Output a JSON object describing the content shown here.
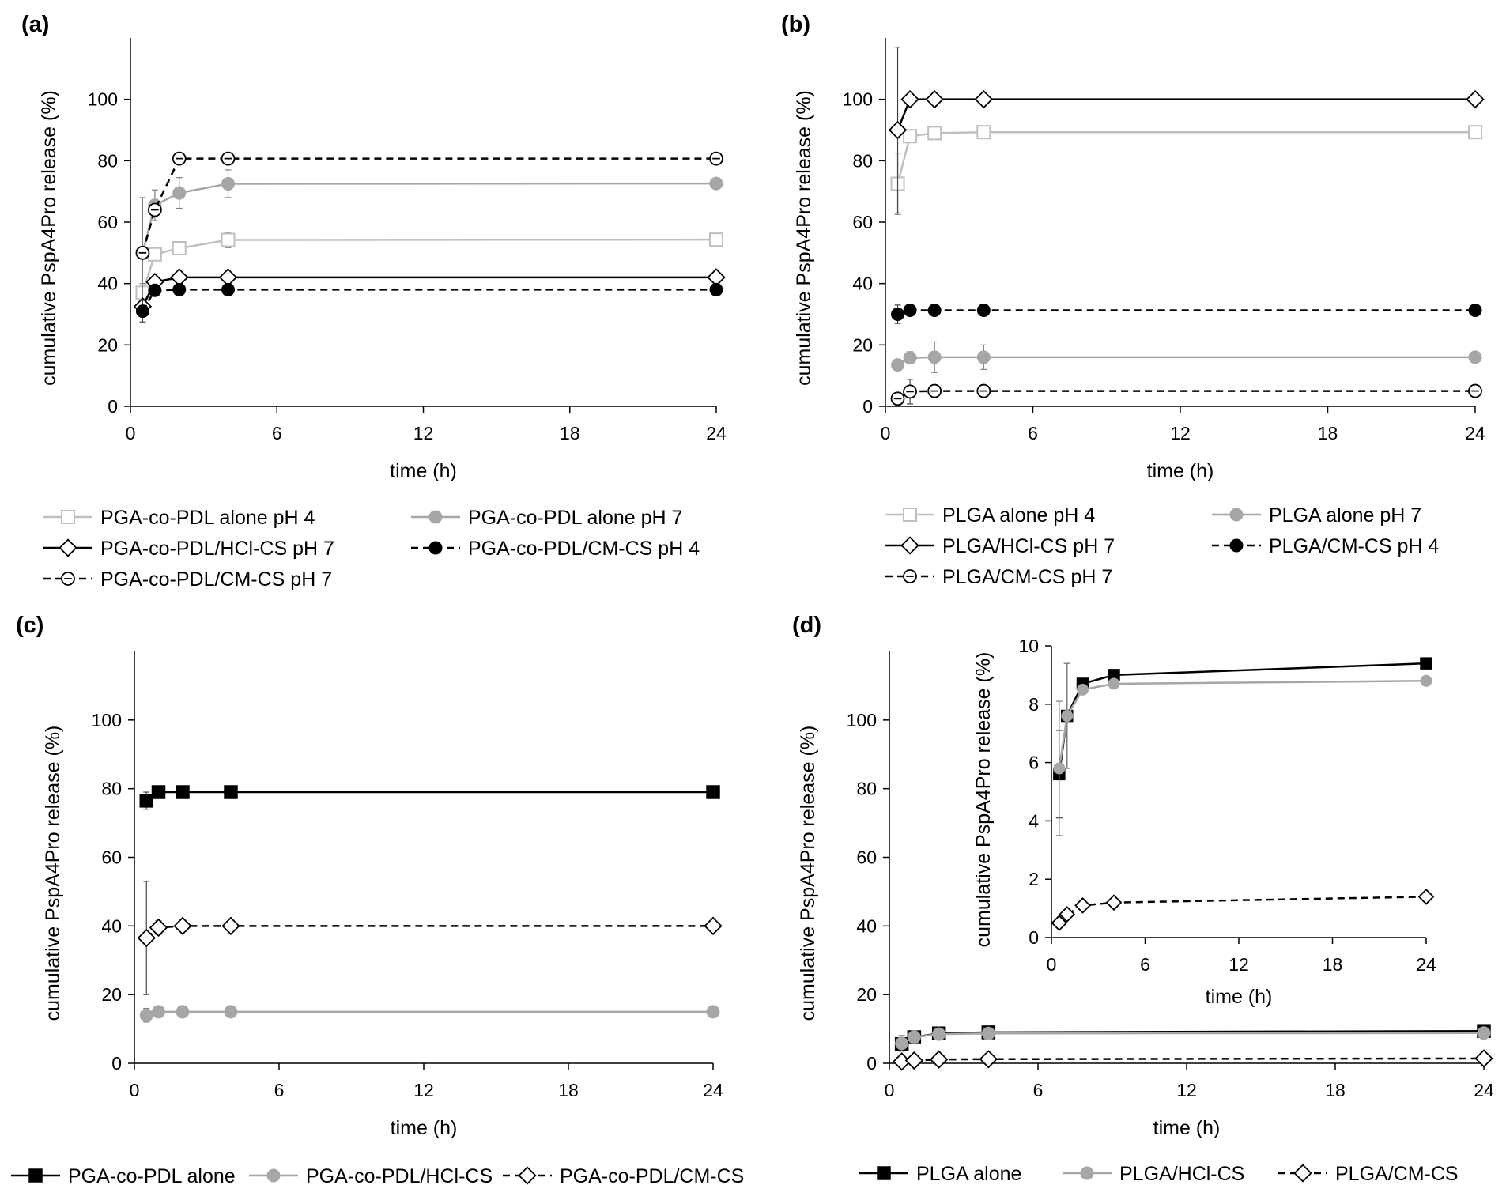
{
  "chart_data": [
    {
      "type": "line",
      "panel_label": "(a)",
      "xlabel": "time (h)",
      "ylabel": "cumulative PspA4Pro release (%)",
      "xlim": [
        0,
        24
      ],
      "xticks": [
        0,
        6,
        12,
        18,
        24
      ],
      "ylim": [
        0,
        120
      ],
      "yticks": [
        0,
        20,
        40,
        60,
        80,
        100
      ],
      "x": [
        0.5,
        1,
        2,
        4,
        24
      ],
      "series": [
        {
          "name": "PGA-co-PDL alone pH 4",
          "color": "#bfbfbf",
          "marker": "open-square",
          "dash": false,
          "values": [
            37,
            49.5,
            51.5,
            54.2,
            54.3
          ],
          "errors": [
            3,
            2,
            2,
            2.5,
            0
          ]
        },
        {
          "name": "PGA-co-PDL alone pH 7",
          "color": "#a6a6a6",
          "marker": "filled-circle",
          "dash": false,
          "values": [
            50,
            65.5,
            69.5,
            72.5,
            72.6
          ],
          "errors": [
            18,
            5,
            5,
            4.5,
            0
          ]
        },
        {
          "name": "PGA-co-PDL/HCl-CS pH 7",
          "color": "#000000",
          "marker": "open-diamond",
          "dash": false,
          "values": [
            32.5,
            40.5,
            42,
            42,
            42
          ],
          "errors": [
            0,
            0,
            0,
            0,
            0
          ]
        },
        {
          "name": "PGA-co-PDL/CM-CS pH 4",
          "color": "#000000",
          "marker": "filled-circle",
          "dash": true,
          "values": [
            31,
            37.8,
            38,
            38,
            38
          ],
          "errors": [
            3.5,
            0,
            0,
            0,
            0
          ]
        },
        {
          "name": "PGA-co-PDL/CM-CS pH 7",
          "color": "#000000",
          "marker": "open-circle-dash",
          "dash": true,
          "values": [
            50,
            64,
            80.7,
            80.7,
            80.7
          ],
          "errors": [
            0,
            0,
            0,
            0,
            0
          ]
        }
      ],
      "legend": "bottom"
    },
    {
      "type": "line",
      "panel_label": "(b)",
      "xlabel": "time (h)",
      "ylabel": "cumulative PspA4Pro release (%)",
      "xlim": [
        0,
        24
      ],
      "xticks": [
        0,
        6,
        12,
        18,
        24
      ],
      "ylim": [
        0,
        120
      ],
      "yticks": [
        0,
        20,
        40,
        60,
        80,
        100
      ],
      "x": [
        0.5,
        1,
        2,
        4,
        24
      ],
      "series": [
        {
          "name": "PLGA alone pH 4",
          "color": "#bfbfbf",
          "marker": "open-square",
          "dash": false,
          "values": [
            72.5,
            88,
            89,
            89.3,
            89.3
          ],
          "errors": [
            10,
            2,
            2,
            0,
            0
          ]
        },
        {
          "name": "PLGA alone pH 7",
          "color": "#a6a6a6",
          "marker": "filled-circle",
          "dash": false,
          "values": [
            13.5,
            15.8,
            16,
            16,
            16
          ],
          "errors": [
            0,
            2,
            5,
            4,
            0
          ]
        },
        {
          "name": "PLGA/HCl-CS pH 7",
          "color": "#000000",
          "marker": "open-diamond",
          "dash": false,
          "values": [
            90,
            100,
            100,
            100,
            100
          ],
          "errors": [
            27,
            0,
            0,
            0,
            0
          ]
        },
        {
          "name": "PLGA/CM-CS pH 4",
          "color": "#000000",
          "marker": "filled-circle",
          "dash": true,
          "values": [
            30,
            31.3,
            31.3,
            31.3,
            31.3
          ],
          "errors": [
            3,
            0,
            0,
            0,
            0
          ]
        },
        {
          "name": "PLGA/CM-CS pH 7",
          "color": "#000000",
          "marker": "open-circle-dash",
          "dash": true,
          "values": [
            2.5,
            4.8,
            5,
            5,
            5
          ],
          "errors": [
            0,
            4,
            0,
            0,
            0
          ]
        }
      ],
      "legend": "bottom"
    },
    {
      "type": "line",
      "panel_label": "(c)",
      "xlabel": "time (h)",
      "ylabel": "cumulative PspA4Pro release (%)",
      "xlim": [
        0,
        24
      ],
      "xticks": [
        0,
        6,
        12,
        18,
        24
      ],
      "ylim": [
        0,
        120
      ],
      "yticks": [
        0,
        20,
        40,
        60,
        80,
        100
      ],
      "x": [
        0.5,
        1,
        2,
        4,
        24
      ],
      "series": [
        {
          "name": "PGA-co-PDL alone",
          "color": "#000000",
          "marker": "filled-square",
          "dash": false,
          "values": [
            76.5,
            79,
            79,
            79,
            79
          ],
          "errors": [
            2.5,
            0,
            0,
            0,
            0
          ]
        },
        {
          "name": "PGA-co-PDL/HCl-CS",
          "color": "#a6a6a6",
          "marker": "filled-circle",
          "dash": false,
          "values": [
            14,
            15,
            15,
            15,
            15
          ],
          "errors": [
            2,
            0,
            0,
            0,
            0
          ]
        },
        {
          "name": "PGA-co-PDL/CM-CS",
          "color": "#000000",
          "marker": "open-diamond",
          "dash": true,
          "values": [
            36.5,
            39.5,
            40,
            40,
            40
          ],
          "errors": [
            16.5,
            2,
            0,
            0,
            0
          ]
        }
      ],
      "legend": "bottom"
    },
    {
      "type": "line",
      "panel_label": "(d)",
      "xlabel": "time (h)",
      "ylabel": "cumulative PspA4Pro release (%)",
      "xlim": [
        0,
        24
      ],
      "xticks": [
        0,
        6,
        12,
        18,
        24
      ],
      "ylim": [
        0,
        120
      ],
      "yticks": [
        0,
        20,
        40,
        60,
        80,
        100
      ],
      "x": [
        0.5,
        1,
        2,
        4,
        24
      ],
      "series": [
        {
          "name": "PLGA alone",
          "color": "#000000",
          "marker": "filled-square",
          "dash": false,
          "values": [
            5.6,
            7.6,
            8.7,
            9,
            9.4
          ],
          "errors": [
            1.5,
            1.8,
            0,
            0,
            0
          ]
        },
        {
          "name": "PLGA/HCl-CS",
          "color": "#a6a6a6",
          "marker": "filled-circle",
          "dash": false,
          "values": [
            5.8,
            7.6,
            8.5,
            8.7,
            8.8
          ],
          "errors": [
            2.3,
            1.8,
            0,
            0,
            0
          ]
        },
        {
          "name": "PLGA/CM-CS",
          "color": "#000000",
          "marker": "open-diamond",
          "dash": true,
          "values": [
            0.5,
            0.8,
            1.1,
            1.2,
            1.4
          ],
          "errors": [
            0,
            0,
            0,
            0,
            0
          ]
        }
      ],
      "legend": "bottom",
      "inset": {
        "xlabel": "time (h)",
        "ylabel": "cumulative PspA4Pro release (%)",
        "xlim": [
          0,
          24
        ],
        "xticks": [
          0,
          6,
          12,
          18,
          24
        ],
        "ylim": [
          0,
          10
        ],
        "yticks": [
          0,
          2,
          4,
          6,
          8,
          10
        ]
      }
    }
  ]
}
